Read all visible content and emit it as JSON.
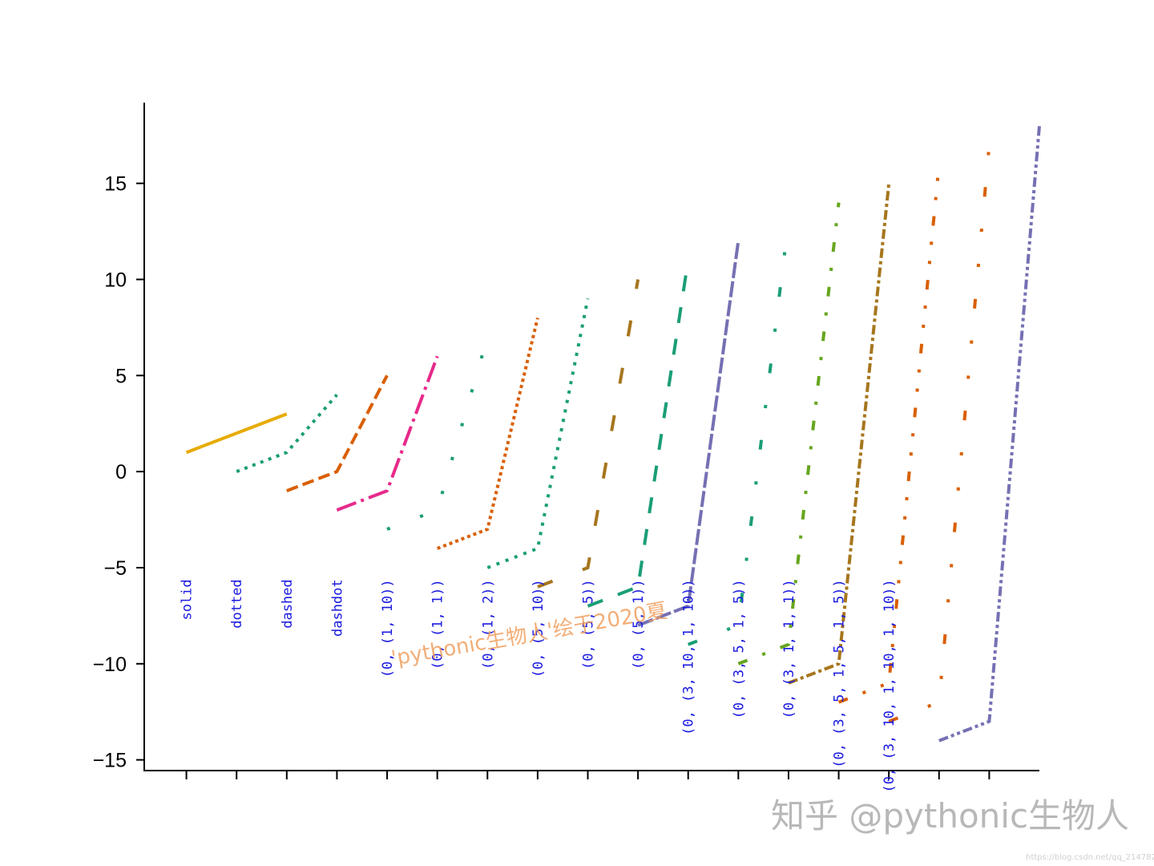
{
  "chart_data": {
    "type": "line",
    "title": "",
    "xlabel": "",
    "ylabel": "",
    "ylim": [
      -15.6,
      19.2
    ],
    "xlim": [
      -0.84,
      17.0
    ],
    "y_ticks": [
      "15",
      "10",
      "5",
      "0",
      "−5",
      "−10",
      "−15"
    ],
    "y_tick_values": [
      15,
      10,
      5,
      0,
      -5,
      -10,
      -15
    ],
    "x_ticks_labeled": false,
    "x_tick_count": 17,
    "grid": false,
    "series": [
      {
        "label": "solid",
        "x": [
          0,
          1,
          2
        ],
        "y": [
          1,
          2,
          3
        ],
        "color": "#e6ab02",
        "dash": "solid"
      },
      {
        "label": "dotted",
        "x": [
          1,
          2,
          3
        ],
        "y": [
          0,
          1,
          4
        ],
        "color": "#1b9e77",
        "dash": "dotted"
      },
      {
        "label": "dashed",
        "x": [
          2,
          3,
          4
        ],
        "y": [
          -1,
          0,
          5
        ],
        "color": "#d95f02",
        "dash": "dashed"
      },
      {
        "label": "dashdot",
        "x": [
          3,
          4,
          5
        ],
        "y": [
          -2,
          -1,
          6
        ],
        "color": "#e7298a",
        "dash": "dashdot"
      },
      {
        "label": "(0, (1, 10))",
        "x": [
          4,
          5,
          6
        ],
        "y": [
          -3,
          -2,
          7
        ],
        "color": "#1b9e77",
        "dash": "0,(1,10)"
      },
      {
        "label": "(0, (1, 1))",
        "x": [
          5,
          6,
          7
        ],
        "y": [
          -4,
          -3,
          8
        ],
        "color": "#d95f02",
        "dash": "0,(1,1)"
      },
      {
        "label": "(0, (1, 2))",
        "x": [
          6,
          7,
          8
        ],
        "y": [
          -5,
          -4,
          9
        ],
        "color": "#1b9e77",
        "dash": "0,(1,2)"
      },
      {
        "label": "(0, (5, 10))",
        "x": [
          7,
          8,
          9
        ],
        "y": [
          -6,
          -5,
          10
        ],
        "color": "#a6761d",
        "dash": "0,(5,10)"
      },
      {
        "label": "(0, (5, 5))",
        "x": [
          8,
          9,
          10
        ],
        "y": [
          -7,
          -6,
          11
        ],
        "color": "#1b9e77",
        "dash": "0,(5,5)"
      },
      {
        "label": "(0, (5, 1))",
        "x": [
          9,
          10,
          11
        ],
        "y": [
          -8,
          -7,
          12
        ],
        "color": "#7570b3",
        "dash": "0,(5,1)"
      },
      {
        "label": "(0, (3, 10, 1, 10))",
        "x": [
          10,
          11,
          12
        ],
        "y": [
          -9,
          -8,
          13
        ],
        "color": "#1b9e77",
        "dash": "0,(3,10,1,10)"
      },
      {
        "label": "(0, (3, 5, 1, 5))",
        "x": [
          11,
          12,
          13
        ],
        "y": [
          -10,
          -9,
          14
        ],
        "color": "#66a61e",
        "dash": "0,(3,5,1,5)"
      },
      {
        "label": "(0, (3, 1, 1, 1))",
        "x": [
          12,
          13,
          14
        ],
        "y": [
          -11,
          -10,
          15
        ],
        "color": "#a6761d",
        "dash": "0,(3,1,1,1)"
      },
      {
        "label": "(0, (3, 5, 1, 5, 1, 5))",
        "x": [
          13,
          14,
          15
        ],
        "y": [
          -12,
          -11,
          16
        ],
        "color": "#d95f02",
        "dash": "0,(3,5,1,5,1,5)"
      },
      {
        "label": "(0, (3, 10, 1, 10, 1, 10))",
        "x": [
          14,
          15,
          16
        ],
        "y": [
          -13,
          -12,
          17
        ],
        "color": "#d95f02",
        "dash": "0,(3,10,1,10,1,10)"
      },
      {
        "label": "",
        "x": [
          15,
          16,
          17
        ],
        "y": [
          -14,
          -13,
          18
        ],
        "color": "#7570b3",
        "dash": "0,(3,1,1,1,1,1)"
      }
    ]
  },
  "watermarks": {
    "inner": "'pythonic生物人'绘于2020夏",
    "inner_color": "#f0a060",
    "brand": "知乎 @pythonic生物人",
    "url": "https://blog.csdn.net/qq_21478261"
  }
}
